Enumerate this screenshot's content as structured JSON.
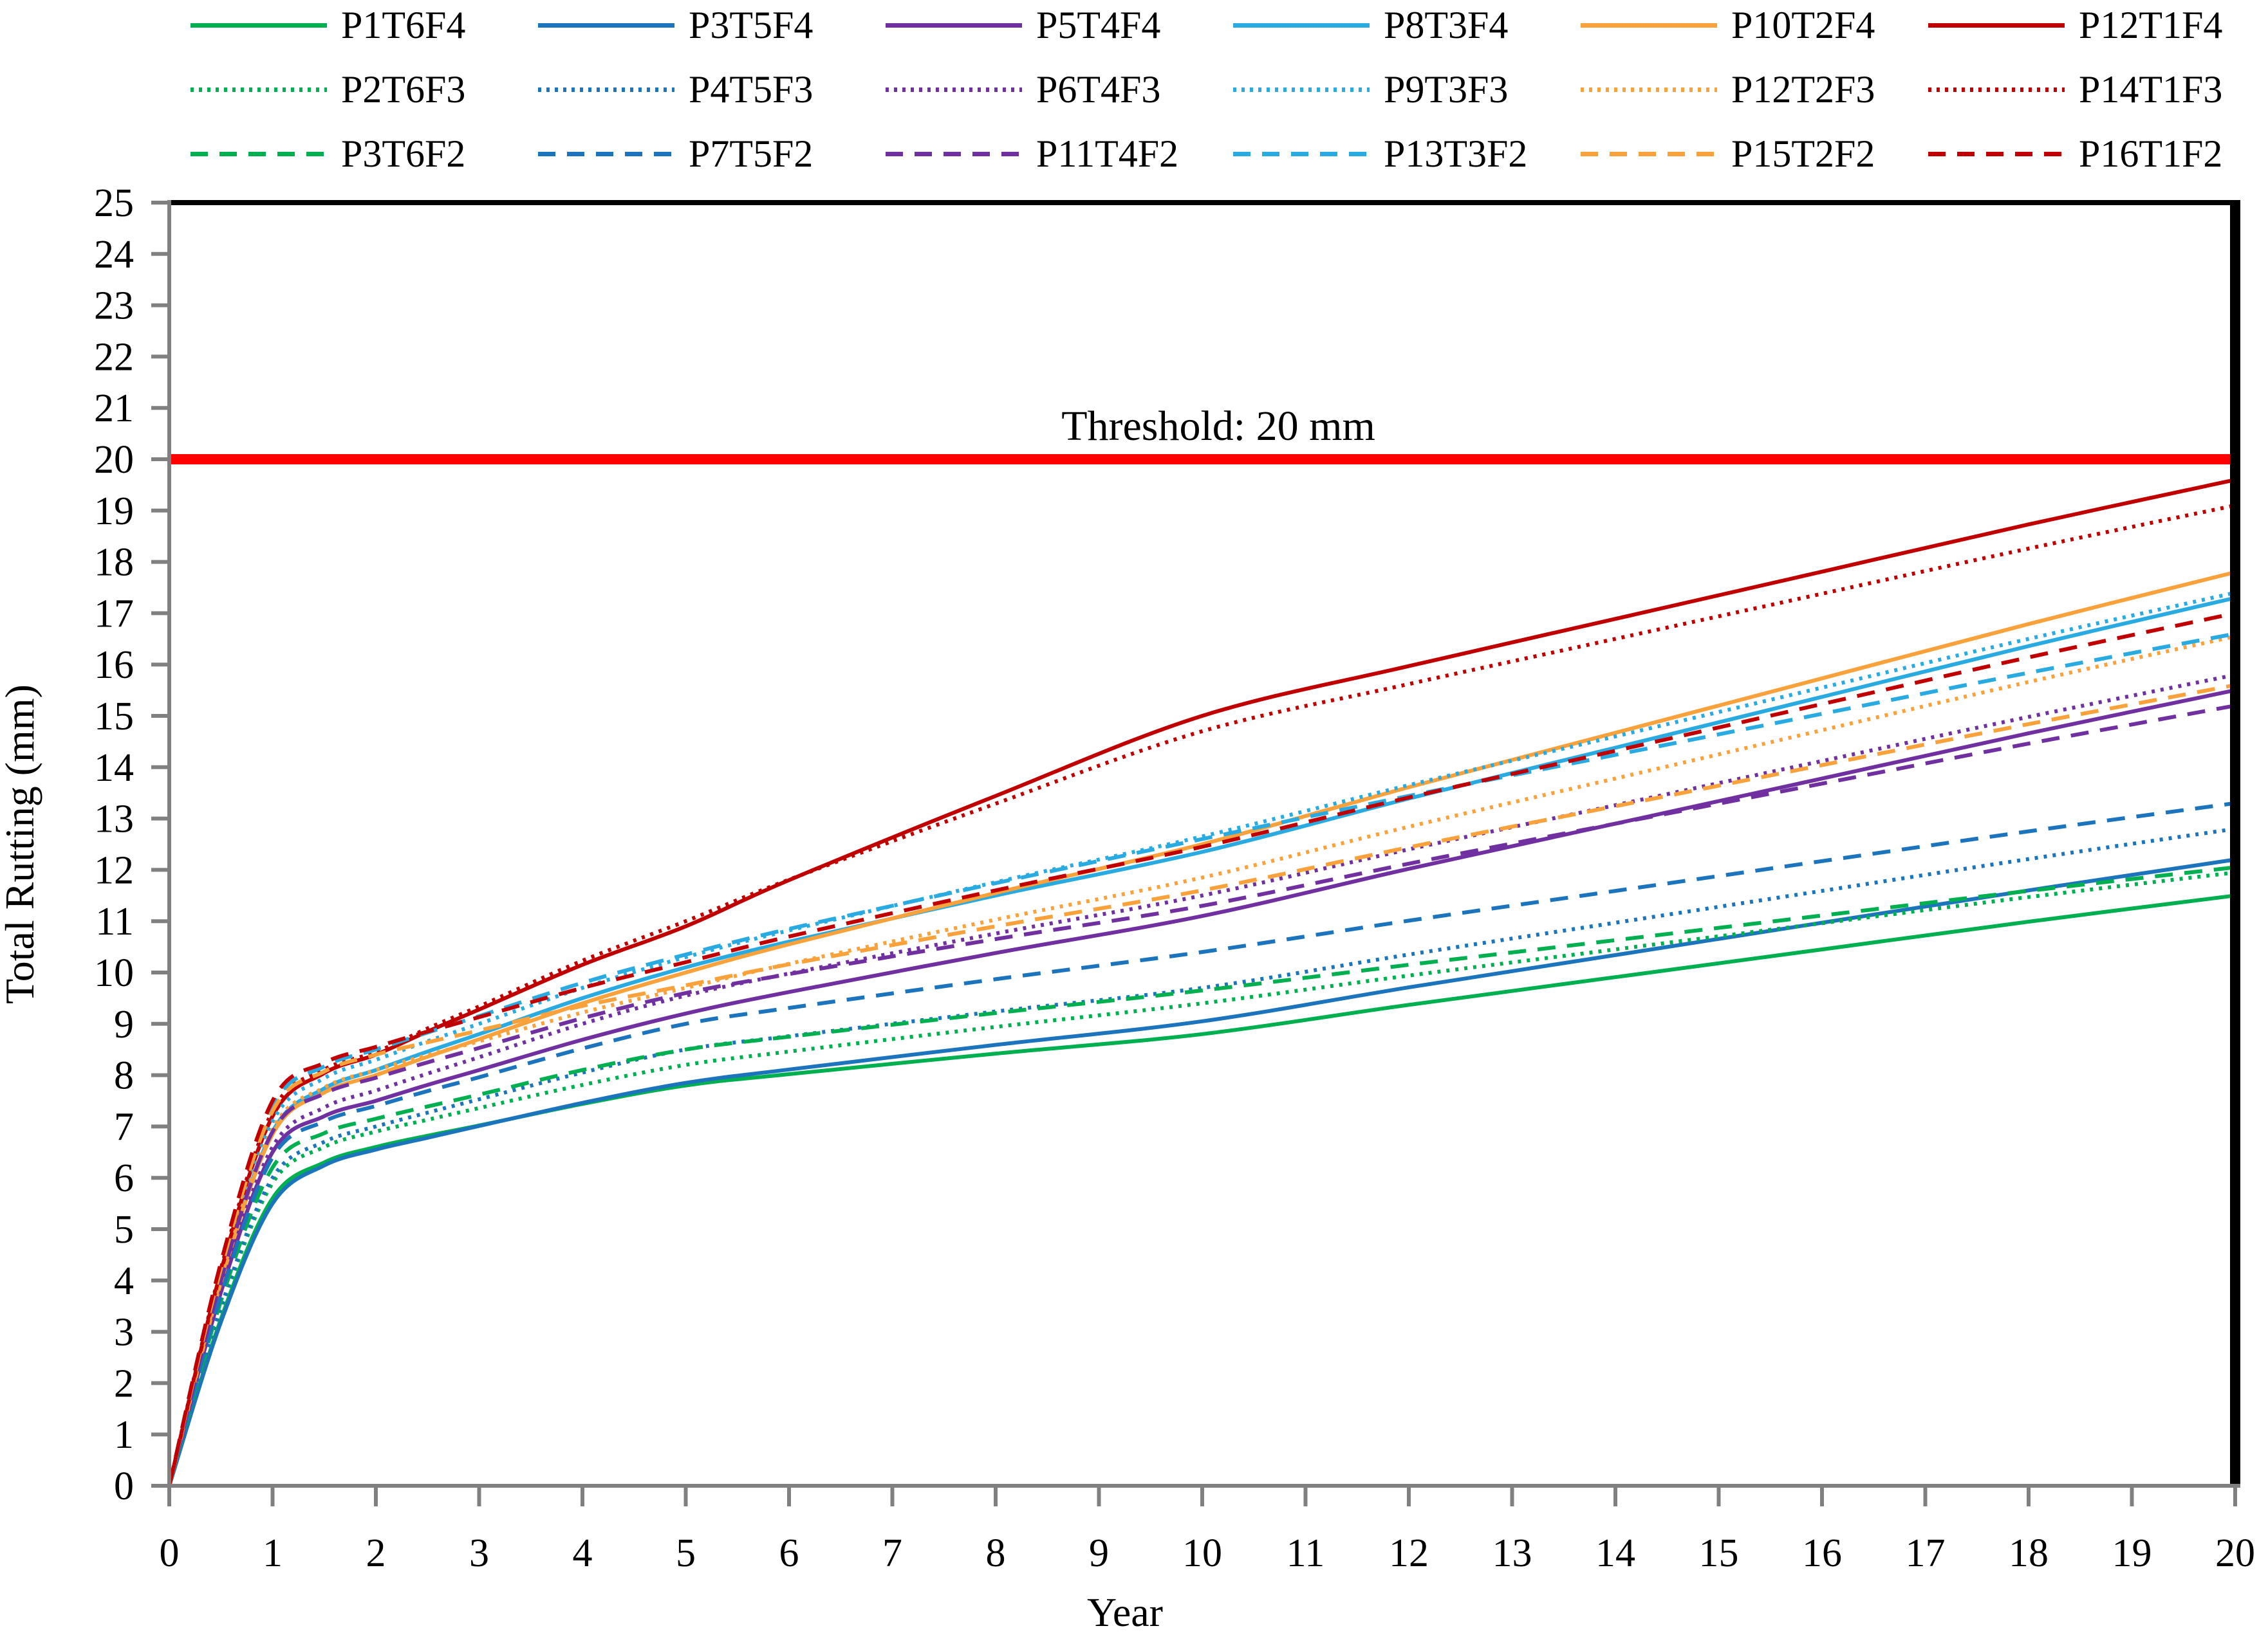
{
  "chart_data": {
    "type": "line",
    "title": "",
    "xlabel": "Year",
    "ylabel": "Total Rutting (mm)",
    "xlim": [
      0,
      20
    ],
    "ylim": [
      0,
      25
    ],
    "x_tick_step": 1,
    "y_tick_step": 1,
    "grid": false,
    "legend_position": "top",
    "threshold": {
      "value": 20,
      "label": "Threshold: 20 mm",
      "color": "#FF0000"
    },
    "x": [
      0,
      0.5,
      1,
      1.5,
      2,
      2.5,
      3,
      4,
      5,
      6,
      8,
      10,
      12,
      14,
      16,
      18,
      20
    ],
    "series": [
      {
        "name": "P1T6F4",
        "color": "#00B050",
        "style": "solid",
        "values": [
          0,
          3.25,
          5.6,
          6.3,
          6.6,
          6.82,
          7.02,
          7.44,
          7.8,
          8.02,
          8.42,
          8.8,
          9.37,
          9.91,
          10.45,
          10.99,
          11.5
        ]
      },
      {
        "name": "P3T5F4",
        "color": "#1C75BC",
        "style": "solid",
        "values": [
          0,
          3.19,
          5.5,
          6.24,
          6.55,
          6.78,
          7.01,
          7.46,
          7.85,
          8.11,
          8.59,
          9.05,
          9.71,
          10.34,
          10.97,
          11.6,
          12.2
        ]
      },
      {
        "name": "P5T4F4",
        "color": "#7030A0",
        "style": "solid",
        "values": [
          0,
          3.77,
          6.5,
          7.2,
          7.5,
          7.81,
          8.1,
          8.69,
          9.2,
          9.62,
          10.38,
          11.1,
          12.02,
          12.9,
          13.78,
          14.66,
          15.5
        ]
      },
      {
        "name": "P8T3F4",
        "color": "#29ABE2",
        "style": "solid",
        "values": [
          0,
          4.0,
          6.9,
          7.74,
          8.1,
          8.46,
          8.8,
          9.5,
          10.1,
          10.6,
          11.5,
          12.35,
          13.39,
          14.38,
          15.37,
          16.36,
          17.3
        ]
      },
      {
        "name": "P10T2F4",
        "color": "#F9A23C",
        "style": "solid",
        "values": [
          0,
          3.97,
          6.85,
          7.66,
          8.0,
          8.36,
          8.7,
          9.4,
          10.0,
          10.55,
          11.55,
          12.5,
          13.61,
          14.67,
          15.73,
          16.79,
          17.8
        ]
      },
      {
        "name": "P12T1F4",
        "color": "#C00000",
        "style": "solid",
        "values": [
          0,
          4.18,
          7.2,
          8.04,
          8.4,
          8.85,
          9.28,
          10.15,
          10.9,
          11.8,
          13.44,
          15.0,
          15.97,
          16.89,
          17.81,
          18.73,
          19.6
        ]
      },
      {
        "name": "P2T6F3",
        "color": "#00B050",
        "style": "dotted",
        "values": [
          0,
          3.42,
          5.9,
          6.6,
          6.9,
          7.13,
          7.36,
          7.81,
          8.2,
          8.46,
          8.94,
          9.4,
          9.94,
          10.45,
          10.96,
          11.47,
          11.95
        ]
      },
      {
        "name": "P4T5F3",
        "color": "#1C75BC",
        "style": "dotted",
        "values": [
          0,
          3.48,
          6.0,
          6.7,
          7.0,
          7.27,
          7.53,
          8.05,
          8.5,
          8.76,
          9.24,
          9.7,
          10.35,
          10.97,
          11.59,
          12.21,
          12.8
        ]
      },
      {
        "name": "P6T4F3",
        "color": "#7030A0",
        "style": "dotted",
        "values": [
          0,
          3.83,
          6.6,
          7.37,
          7.7,
          8.03,
          8.35,
          9.0,
          9.55,
          9.98,
          10.76,
          11.5,
          12.4,
          13.26,
          14.12,
          14.98,
          15.8
        ]
      },
      {
        "name": "P9T3F3",
        "color": "#29ABE2",
        "style": "dotted",
        "values": [
          0,
          4.12,
          7.1,
          7.94,
          8.3,
          8.66,
          9.0,
          9.7,
          10.3,
          10.82,
          11.76,
          12.65,
          13.65,
          14.6,
          15.55,
          16.5,
          17.4
        ]
      },
      {
        "name": "P12T2F3",
        "color": "#F9A23C",
        "style": "dotted",
        "values": [
          0,
          4.03,
          6.95,
          7.76,
          8.1,
          8.39,
          8.66,
          9.22,
          9.7,
          10.17,
          11.03,
          11.85,
          12.84,
          13.78,
          14.72,
          15.66,
          16.55
        ]
      },
      {
        "name": "P14T1F3",
        "color": "#C00000",
        "style": "dotted",
        "values": [
          0,
          4.23,
          7.3,
          8.11,
          8.45,
          8.91,
          9.34,
          10.23,
          11.0,
          11.81,
          13.29,
          14.7,
          15.62,
          16.5,
          17.38,
          18.26,
          19.1
        ]
      },
      {
        "name": "P3T6F2",
        "color": "#00B050",
        "style": "dashed",
        "values": [
          0,
          3.6,
          6.2,
          6.87,
          7.15,
          7.39,
          7.62,
          8.1,
          8.5,
          8.75,
          9.21,
          9.65,
          10.15,
          10.63,
          11.11,
          11.59,
          12.05
        ]
      },
      {
        "name": "P7T5F2",
        "color": "#1C75BC",
        "style": "dashed",
        "values": [
          0,
          3.71,
          6.4,
          7.1,
          7.4,
          7.69,
          7.96,
          8.52,
          9.0,
          9.31,
          9.87,
          10.4,
          11.01,
          11.59,
          12.17,
          12.75,
          13.3
        ]
      },
      {
        "name": "P11T4F2",
        "color": "#7030A0",
        "style": "dashed",
        "values": [
          0,
          4.0,
          6.9,
          7.64,
          7.95,
          8.25,
          8.53,
          9.11,
          9.6,
          9.97,
          10.65,
          11.3,
          12.12,
          12.9,
          13.68,
          14.46,
          15.2
        ]
      },
      {
        "name": "P13T3F2",
        "color": "#29ABE2",
        "style": "dashed",
        "values": [
          0,
          4.29,
          7.4,
          8.17,
          8.5,
          8.83,
          9.15,
          9.8,
          10.35,
          10.85,
          11.74,
          12.6,
          13.44,
          14.24,
          15.04,
          15.84,
          16.6
        ]
      },
      {
        "name": "P15T2F2",
        "color": "#F9A23C",
        "style": "dashed",
        "values": [
          0,
          4.23,
          7.3,
          8.07,
          8.4,
          8.64,
          8.87,
          9.35,
          9.75,
          10.16,
          10.9,
          11.6,
          12.44,
          13.24,
          14.04,
          14.84,
          15.6
        ]
      },
      {
        "name": "P16T1F2",
        "color": "#C00000",
        "style": "dashed",
        "values": [
          0,
          4.35,
          7.5,
          8.24,
          8.55,
          8.85,
          9.13,
          9.7,
          10.2,
          10.7,
          11.6,
          12.45,
          13.41,
          14.32,
          15.23,
          16.14,
          17.0
        ]
      }
    ]
  },
  "style": {
    "axis_color": "#808080",
    "border_color": "#000000",
    "text_color": "#000000",
    "background": "#FFFFFF"
  }
}
